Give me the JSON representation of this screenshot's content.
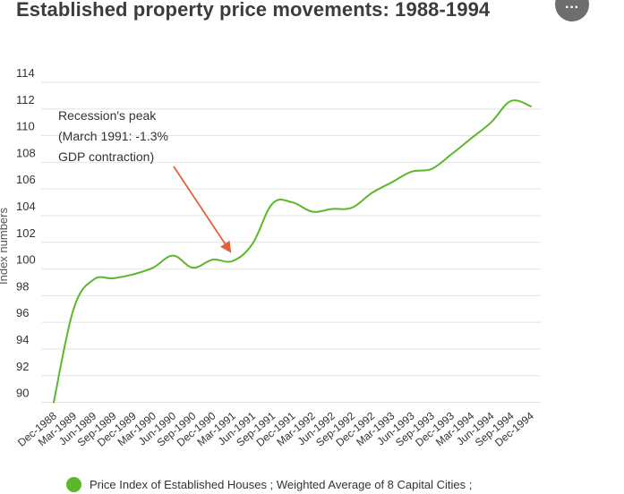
{
  "header": {
    "title": "Established property price movements: 1988-1994",
    "more_icon": "more-horizontal-icon",
    "more_label": "···"
  },
  "chart_data": {
    "type": "line",
    "title": "Established property price movements: 1988-1994",
    "ylabel": "Index numbers",
    "xlabel": "",
    "ylim": [
      89.5,
      114
    ],
    "yticks": [
      90,
      92,
      94,
      96,
      98,
      100,
      102,
      104,
      106,
      108,
      110,
      112,
      114
    ],
    "grid": true,
    "legend_position": "bottom-left",
    "categories": [
      "Dec-1988",
      "Mar-1989",
      "Jun-1989",
      "Sep-1989",
      "Dec-1989",
      "Mar-1990",
      "Jun-1990",
      "Sep-1990",
      "Dec-1990",
      "Mar-1991",
      "Jun-1991",
      "Sep-1991",
      "Dec-1991",
      "Mar-1992",
      "Jun-1992",
      "Sep-1992",
      "Dec-1992",
      "Mar-1993",
      "Jun-1993",
      "Sep-1993",
      "Dec-1993",
      "Mar-1994",
      "Jun-1994",
      "Sep-1994",
      "Dec-1994"
    ],
    "series": [
      {
        "name": "Price Index of Established Houses ; Weighted Average of 8 Capital Cities ;",
        "color": "#5ab82a",
        "values": [
          90.0,
          97.0,
          99.2,
          99.3,
          99.6,
          100.1,
          101.0,
          100.1,
          100.7,
          100.6,
          101.9,
          104.9,
          105.0,
          104.3,
          104.5,
          104.6,
          105.7,
          106.5,
          107.3,
          107.5,
          108.6,
          109.8,
          111.0,
          112.6,
          112.2
        ]
      }
    ],
    "annotations": [
      {
        "text_lines": [
          "Recession's peak",
          "(March 1991: -1.3%",
          "GDP contraction)"
        ],
        "target_category": "Mar-1991",
        "target_value": 100.6,
        "arrow_color": "#e0633a"
      }
    ]
  }
}
